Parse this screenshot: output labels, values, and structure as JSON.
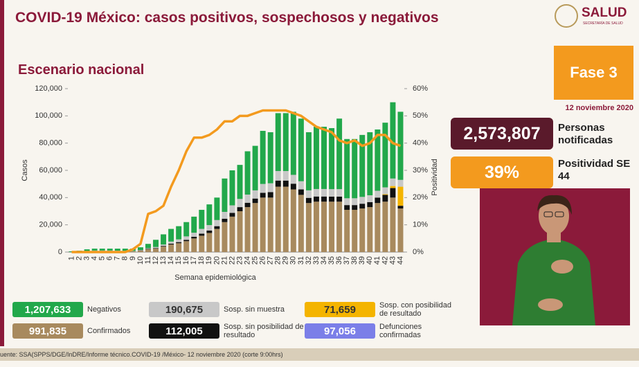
{
  "header": {
    "logo": "SALUD",
    "logo_sub": "SECRETARÍA DE SALUD"
  },
  "chart_data": {
    "type": "bar",
    "title": "COVID-19 México: casos positivos, sospechosos y negativos",
    "subtitle": "Escenario nacional",
    "xlabel": "Semana epidemiológica",
    "ylabel": "Casos",
    "y2label": "Positividad",
    "categories": [
      "1",
      "2",
      "3",
      "4",
      "5",
      "6",
      "7",
      "8",
      "9",
      "10",
      "11",
      "12",
      "13",
      "14",
      "15",
      "16",
      "17",
      "18",
      "19",
      "20",
      "21",
      "22",
      "23",
      "24",
      "25",
      "26",
      "27",
      "28",
      "29",
      "30",
      "31",
      "32",
      "33",
      "34",
      "35",
      "36",
      "37",
      "38",
      "39",
      "40",
      "41",
      "42",
      "43",
      "44"
    ],
    "ylim": [
      0,
      120000
    ],
    "yticks": [
      0,
      {
        "value": 20000,
        "label": "20,000"
      },
      {
        "value": 40000,
        "label": "40,000"
      },
      {
        "value": 60000,
        "label": "60,000"
      },
      {
        "value": 80000,
        "label": "80,000"
      },
      {
        "value": 100000,
        "label": "100,000"
      },
      {
        "value": 120000,
        "label": "120,000"
      }
    ],
    "y2lim": [
      0,
      60
    ],
    "y2ticks": [
      {
        "value": 0,
        "label": "0%"
      },
      {
        "value": 10,
        "label": "10%"
      },
      {
        "value": 20,
        "label": "20%"
      },
      {
        "value": 30,
        "label": "30%"
      },
      {
        "value": 40,
        "label": "40%"
      },
      {
        "value": 50,
        "label": "50%"
      },
      {
        "value": 60,
        "label": "60%"
      }
    ],
    "series": [
      {
        "name": "Confirmados",
        "total": "991,835",
        "color": "#a88a5e",
        "values": [
          0,
          300,
          500,
          800,
          800,
          800,
          700,
          600,
          500,
          1000,
          2000,
          2500,
          4000,
          5500,
          6500,
          8000,
          10000,
          12000,
          14000,
          17000,
          22000,
          26000,
          30000,
          33000,
          36000,
          40000,
          40000,
          48000,
          48000,
          46000,
          42000,
          36000,
          37000,
          37000,
          37000,
          37000,
          31000,
          31000,
          32000,
          33000,
          36000,
          37000,
          40000,
          32000
        ]
      },
      {
        "name": "Sosp. sin posibilidad de resultado",
        "total": "112,005",
        "color": "#111111",
        "values": [
          0,
          0,
          100,
          100,
          100,
          100,
          100,
          100,
          100,
          200,
          300,
          400,
          500,
          700,
          800,
          1000,
          1200,
          1500,
          1800,
          2000,
          2500,
          2800,
          3000,
          3200,
          3300,
          3500,
          4000,
          4500,
          4500,
          4200,
          4000,
          3800,
          3800,
          3800,
          3700,
          3700,
          3500,
          3500,
          3500,
          3700,
          4000,
          5000,
          7000,
          2000
        ]
      },
      {
        "name": "Sosp. con posibilidad de resultado",
        "total": "71,659",
        "color": "#f4b400",
        "values": [
          0,
          0,
          0,
          0,
          0,
          0,
          0,
          0,
          0,
          0,
          0,
          0,
          0,
          0,
          0,
          0,
          0,
          0,
          0,
          0,
          0,
          0,
          0,
          0,
          0,
          0,
          0,
          0,
          0,
          0,
          0,
          0,
          0,
          0,
          0,
          0,
          0,
          0,
          0,
          0,
          0,
          500,
          1500,
          14000
        ]
      },
      {
        "name": "Sosp. sin muestra",
        "total": "190,675",
        "color": "#c8c8c8",
        "values": [
          0,
          100,
          100,
          200,
          200,
          200,
          200,
          200,
          200,
          300,
          500,
          800,
          1000,
          1500,
          2000,
          2500,
          3000,
          3500,
          4000,
          4500,
          5000,
          5500,
          6000,
          6000,
          6000,
          6500,
          6500,
          7000,
          7000,
          6500,
          6000,
          5500,
          5500,
          5500,
          5500,
          5500,
          5000,
          5000,
          5000,
          5000,
          5000,
          5000,
          5500,
          5000
        ]
      },
      {
        "name": "Negativos",
        "total": "1,207,633",
        "color": "#22a84b",
        "values": [
          500,
          600,
          1300,
          1400,
          1400,
          1400,
          1500,
          1600,
          1700,
          2000,
          3200,
          5300,
          7500,
          9300,
          9700,
          10500,
          11800,
          14000,
          15200,
          16500,
          24500,
          25700,
          25000,
          31800,
          32700,
          39000,
          37500,
          42500,
          42500,
          46300,
          46000,
          42700,
          45700,
          45700,
          44800,
          51800,
          43500,
          43500,
          45500,
          46300,
          45000,
          47500,
          56000,
          50000
        ]
      },
      {
        "type": "line",
        "axis": "y2",
        "color": "#f39a1e",
        "values": [
          0,
          0,
          0,
          0,
          0,
          0,
          0,
          0,
          1,
          3,
          14,
          15,
          17,
          24,
          30,
          37,
          42,
          42,
          43,
          45,
          48,
          48,
          50,
          50,
          51,
          52,
          52,
          52,
          52,
          51,
          50,
          48,
          46,
          45,
          44,
          41,
          40,
          41,
          39,
          40,
          43,
          43,
          40,
          39
        ]
      }
    ],
    "extra": {
      "name": "Defunciones confirmadas",
      "total": "97,056",
      "color": "#7b7fe8"
    }
  },
  "panel": {
    "phase": "Fase 3",
    "date": "12 noviembre 2020",
    "notified": "2,573,807",
    "notified_label": "Personas notificadas",
    "positivity": "39%",
    "positivity_label": "Positividad SE 44"
  },
  "footer": "uente: SSA(SPPS/DGE/InDRE/Informe técnico.COVID-19 /México- 12 noviembre 2020 (corte 9:00hrs)"
}
